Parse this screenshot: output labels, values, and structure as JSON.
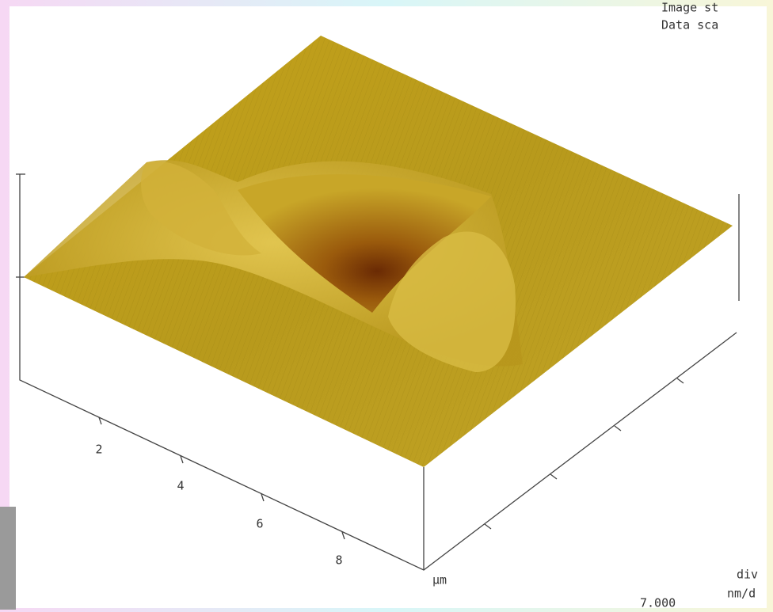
{
  "header": {
    "image_label": "Image st",
    "data_label": "Data sca"
  },
  "axis": {
    "ticks": [
      "2",
      "4",
      "6",
      "8"
    ],
    "unit": "µm"
  },
  "footer": {
    "value_label": "7.000",
    "div_label": "div",
    "scale_label": "nm/d"
  }
}
